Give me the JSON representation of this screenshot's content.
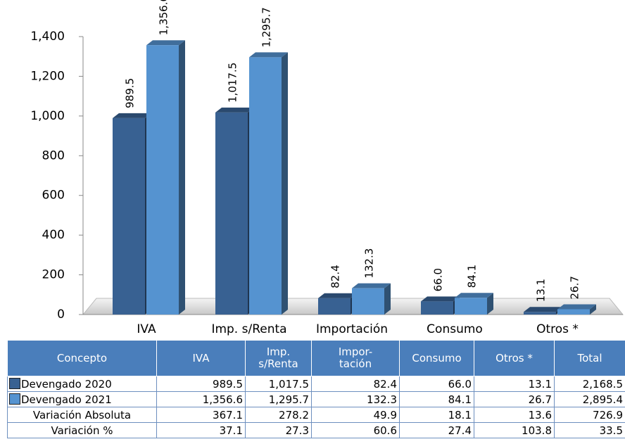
{
  "chart_data": {
    "type": "bar",
    "categories": [
      "IVA",
      "Imp. s/Renta",
      "Importación",
      "Consumo",
      "Otros *"
    ],
    "series": [
      {
        "name": "Devengado 2020",
        "color": "#386192",
        "values": [
          989.5,
          1017.5,
          82.4,
          66.0,
          13.1
        ],
        "value_labels": [
          "989.5",
          "1,017.5",
          "82.4",
          "66.0",
          "13.1"
        ]
      },
      {
        "name": "Devengado 2021",
        "color": "#5593d0",
        "values": [
          1356.6,
          1295.7,
          132.3,
          84.1,
          26.7
        ],
        "value_labels": [
          "1,356.6",
          "1,295.7",
          "132.3",
          "84.1",
          "26.7"
        ]
      }
    ],
    "ylim": [
      0,
      1400
    ],
    "yticks": [
      0,
      200,
      400,
      600,
      800,
      {
        "value": 1000,
        "label": "1,000"
      },
      {
        "value": 1200,
        "label": "1,200"
      },
      {
        "value": 1400,
        "label": "1,400"
      }
    ],
    "grid": false
  },
  "table": {
    "header": [
      "Concepto",
      "IVA",
      "Imp. s/Renta",
      "Impor-tación",
      "Consumo",
      "Otros *",
      "Total"
    ],
    "rows": [
      [
        "Devengado 2020",
        "989.5",
        "1,017.5",
        "82.4",
        "66.0",
        "13.1",
        "2,168.5"
      ],
      [
        "Devengado 2021",
        "1,356.6",
        "1,295.7",
        "132.3",
        "84.1",
        "26.7",
        "2,895.4"
      ],
      [
        "Variación Absoluta",
        "367.1",
        "278.2",
        "49.9",
        "18.1",
        "13.6",
        "726.9"
      ],
      [
        "Variación %",
        "37.1",
        "27.3",
        "60.6",
        "27.4",
        "103.8",
        "33.5"
      ]
    ]
  }
}
